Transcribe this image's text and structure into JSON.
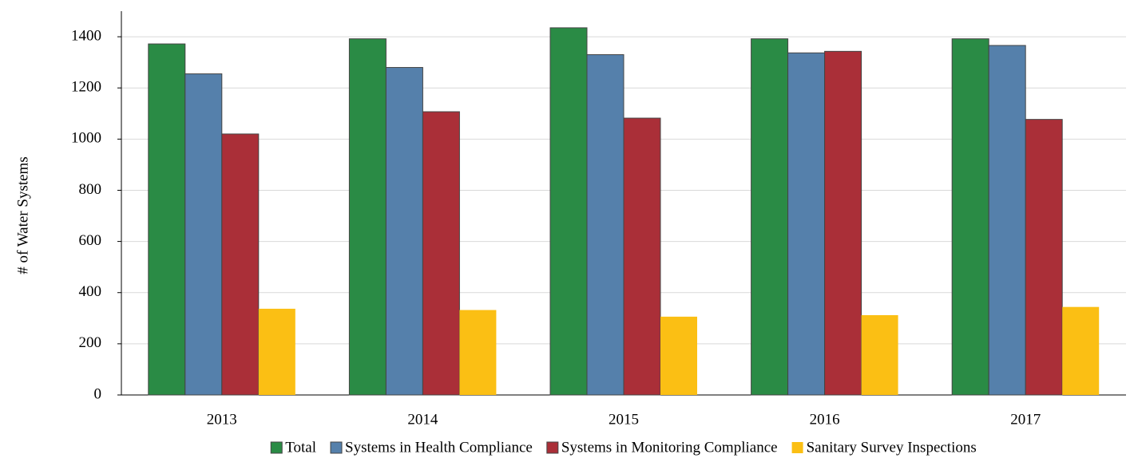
{
  "chart_data": {
    "type": "bar",
    "y_label": "# of Water Systems",
    "categories": [
      "2013",
      "2014",
      "2015",
      "2016",
      "2017"
    ],
    "series": [
      {
        "name": "Total",
        "color": "#2a8b45",
        "values": [
          1372,
          1392,
          1435,
          1392,
          1392
        ]
      },
      {
        "name": "Systems in Health Compliance",
        "color": "#5580ab",
        "values": [
          1255,
          1280,
          1330,
          1337,
          1366
        ]
      },
      {
        "name": "Systems in Monitoring Compliance",
        "color": "#aa2f38",
        "values": [
          1020,
          1107,
          1082,
          1343,
          1077
        ]
      },
      {
        "name": "Sanitary Survey Inspections",
        "color": "#fbbf14",
        "values": [
          337,
          332,
          306,
          312,
          344
        ]
      }
    ],
    "ylim": [
      0,
      1500
    ],
    "yticks": [
      0,
      200,
      400,
      600,
      800,
      1000,
      1200,
      1400
    ],
    "grid": true,
    "legend": "bottom"
  }
}
